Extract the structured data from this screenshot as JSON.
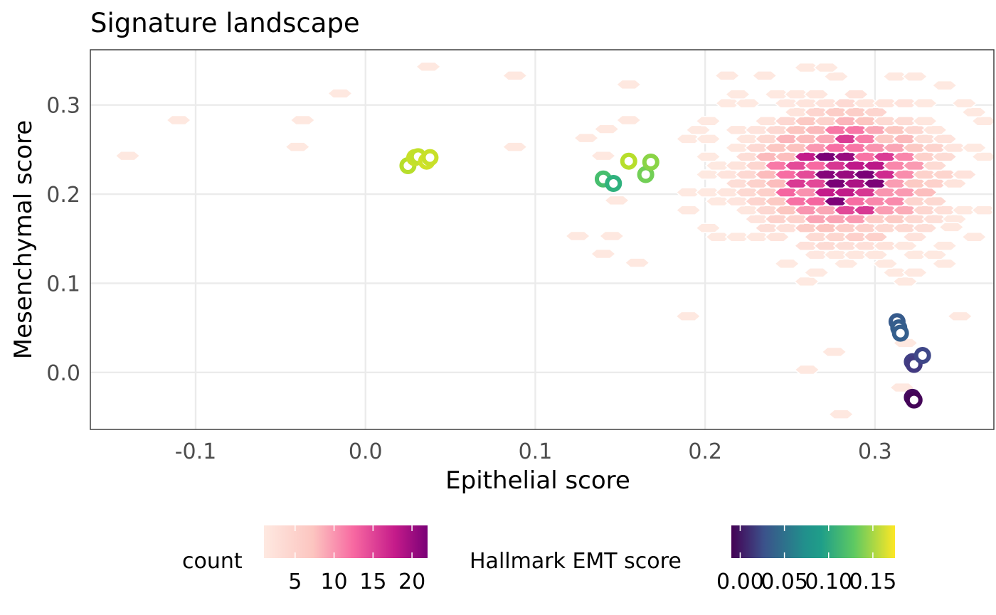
{
  "chart_data": {
    "type": "scatter",
    "title": "Signature landscape",
    "xlabel": "Epithelial score",
    "ylabel": "Mesenchymal score",
    "xlim": [
      -0.162,
      0.37
    ],
    "ylim": [
      -0.064,
      0.362
    ],
    "x_ticks": [
      "-0.1",
      "0.0",
      "0.1",
      "0.2",
      "0.3"
    ],
    "y_ticks": [
      "0.0",
      "0.1",
      "0.2",
      "0.3"
    ],
    "x_tick_values": [
      -0.1,
      0.0,
      0.1,
      0.2,
      0.3
    ],
    "y_tick_values": [
      0.0,
      0.1,
      0.2,
      0.3
    ],
    "grid": true,
    "hexbin": {
      "legend_title": "count",
      "legend_ticks": [
        "5",
        "10",
        "15",
        "20"
      ],
      "legend_tick_values": [
        5,
        10,
        15,
        20
      ],
      "count_range": [
        1,
        22
      ],
      "colors": [
        "#fee9e1",
        "#fcc5c0",
        "#f768a1",
        "#c51b8a",
        "#7a0177"
      ],
      "dense_center": [
        0.283,
        0.222
      ],
      "sparse_cells": [
        [
          -0.14,
          0.243
        ],
        [
          -0.11,
          0.283
        ],
        [
          -0.04,
          0.253
        ],
        [
          -0.037,
          0.283
        ],
        [
          -0.015,
          0.313
        ],
        [
          0.037,
          0.343
        ],
        [
          0.088,
          0.333
        ],
        [
          0.088,
          0.253
        ],
        [
          0.155,
          0.323
        ],
        [
          0.155,
          0.283
        ],
        [
          0.13,
          0.263
        ],
        [
          0.142,
          0.273
        ],
        [
          0.14,
          0.243
        ],
        [
          0.148,
          0.193
        ],
        [
          0.145,
          0.153
        ],
        [
          0.125,
          0.153
        ],
        [
          0.14,
          0.133
        ],
        [
          0.16,
          0.123
        ],
        [
          0.345,
          0.163
        ],
        [
          0.35,
          0.063
        ],
        [
          0.19,
          0.063
        ],
        [
          0.318,
          0.033
        ],
        [
          0.276,
          0.023
        ],
        [
          0.26,
          0.003
        ],
        [
          0.28,
          -0.047
        ],
        [
          0.316,
          -0.017
        ],
        [
          0.235,
          0.333
        ],
        [
          0.213,
          0.333
        ]
      ]
    },
    "series": [
      {
        "color_legend_title": "Hallmark EMT score",
        "color_ticks": [
          "0.00",
          "0.05",
          "0.10",
          "0.15"
        ],
        "color_tick_values": [
          0.0,
          0.05,
          0.1,
          0.15
        ],
        "color_range": [
          -0.01,
          0.175
        ],
        "points": [
          {
            "x": 0.025,
            "y": 0.232,
            "emt": 0.155
          },
          {
            "x": 0.029,
            "y": 0.241,
            "emt": 0.16
          },
          {
            "x": 0.031,
            "y": 0.242,
            "emt": 0.158
          },
          {
            "x": 0.036,
            "y": 0.237,
            "emt": 0.162
          },
          {
            "x": 0.038,
            "y": 0.241,
            "emt": 0.16
          },
          {
            "x": 0.14,
            "y": 0.217,
            "emt": 0.12
          },
          {
            "x": 0.146,
            "y": 0.212,
            "emt": 0.108
          },
          {
            "x": 0.155,
            "y": 0.237,
            "emt": 0.155
          },
          {
            "x": 0.165,
            "y": 0.222,
            "emt": 0.135
          },
          {
            "x": 0.168,
            "y": 0.236,
            "emt": 0.142
          },
          {
            "x": 0.313,
            "y": 0.057,
            "emt": 0.043
          },
          {
            "x": 0.314,
            "y": 0.05,
            "emt": 0.045
          },
          {
            "x": 0.315,
            "y": 0.044,
            "emt": 0.046
          },
          {
            "x": 0.322,
            "y": 0.012,
            "emt": 0.025
          },
          {
            "x": 0.323,
            "y": 0.009,
            "emt": 0.022
          },
          {
            "x": 0.328,
            "y": 0.019,
            "emt": 0.03
          },
          {
            "x": 0.322,
            "y": -0.028,
            "emt": -0.005
          },
          {
            "x": 0.323,
            "y": -0.031,
            "emt": -0.008
          }
        ]
      }
    ],
    "viridis": [
      "#440154",
      "#482878",
      "#3e4989",
      "#31688e",
      "#26828e",
      "#1f9e89",
      "#35b779",
      "#6ece58",
      "#b5de2b",
      "#fde725"
    ]
  }
}
